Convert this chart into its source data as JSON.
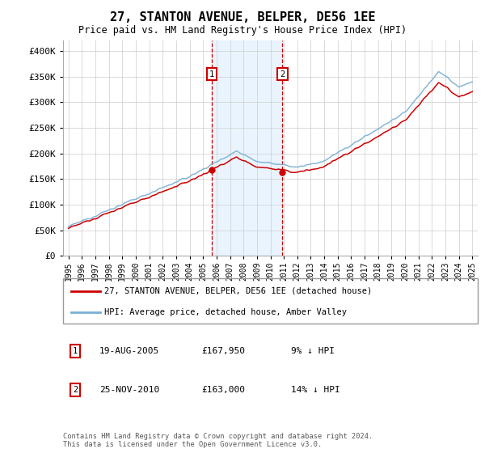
{
  "title": "27, STANTON AVENUE, BELPER, DE56 1EE",
  "subtitle": "Price paid vs. HM Land Registry's House Price Index (HPI)",
  "hpi_label": "HPI: Average price, detached house, Amber Valley",
  "price_label": "27, STANTON AVENUE, BELPER, DE56 1EE (detached house)",
  "footnote": "Contains HM Land Registry data © Crown copyright and database right 2024.\nThis data is licensed under the Open Government Licence v3.0.",
  "transaction1": {
    "label": "1",
    "date": "19-AUG-2005",
    "price": "£167,950",
    "note": "9% ↓ HPI"
  },
  "transaction2": {
    "label": "2",
    "date": "25-NOV-2010",
    "price": "£163,000",
    "note": "14% ↓ HPI"
  },
  "hpi_color": "#7aafd4",
  "price_color": "#cc0000",
  "marker_color": "#cc0000",
  "vline_color": "#cc0000",
  "shade_color": "#ddeeff",
  "ylim": [
    0,
    420000
  ],
  "yticks": [
    0,
    50000,
    100000,
    150000,
    200000,
    250000,
    300000,
    350000,
    400000
  ],
  "ytick_labels": [
    "£0",
    "£50K",
    "£100K",
    "£150K",
    "£200K",
    "£250K",
    "£300K",
    "£350K",
    "£400K"
  ],
  "year_start": 1995,
  "year_end": 2025,
  "transaction1_year": 2005.63,
  "transaction2_year": 2010.9,
  "transaction1_price": 167950,
  "transaction2_price": 163000
}
